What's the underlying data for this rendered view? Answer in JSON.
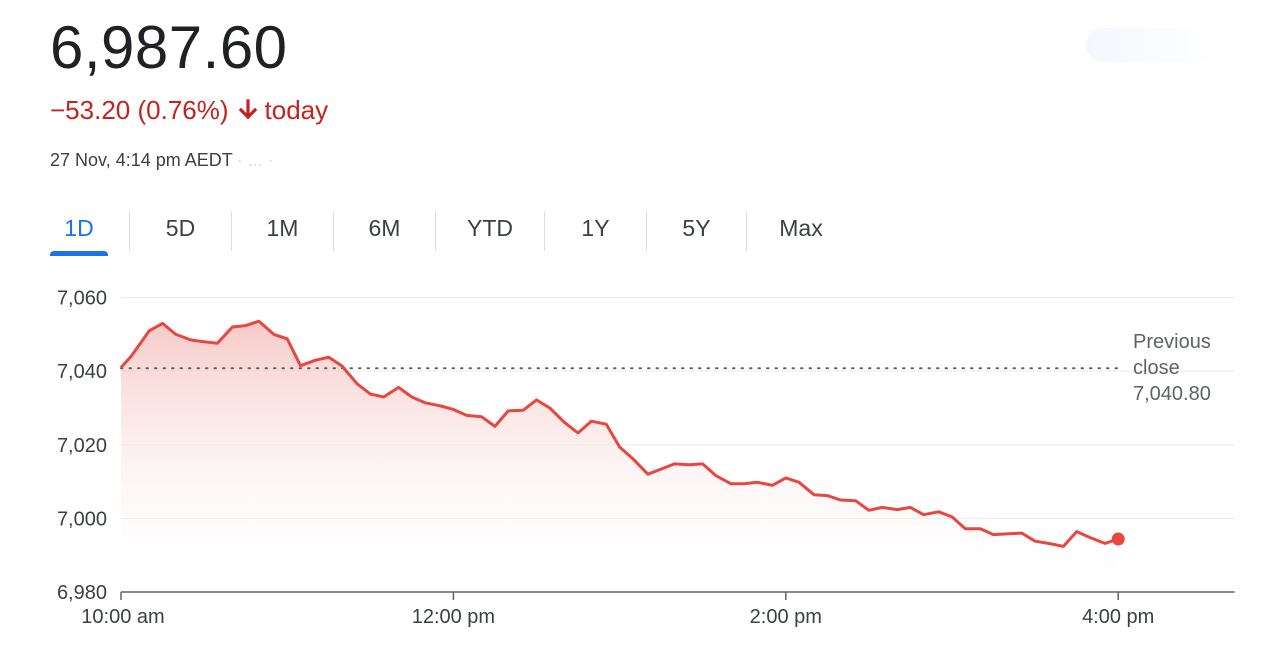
{
  "quote": {
    "price": "6,987.60",
    "change": "−53.20 (0.76%)",
    "change_suffix": "today",
    "timestamp": "27 Nov, 4:14 pm AEDT",
    "timestamp_faded": "· ... ·",
    "direction_icon": "arrow-down-icon",
    "change_color": "#c5221f"
  },
  "range_tabs": [
    {
      "label": "1D",
      "active": true
    },
    {
      "label": "5D",
      "active": false
    },
    {
      "label": "1M",
      "active": false
    },
    {
      "label": "6M",
      "active": false
    },
    {
      "label": "YTD",
      "active": false
    },
    {
      "label": "1Y",
      "active": false
    },
    {
      "label": "5Y",
      "active": false
    },
    {
      "label": "Max",
      "active": false
    }
  ],
  "colors": {
    "line": "#e8473f",
    "fill_top": "#f6c7c4",
    "active_tab": "#1a73e8",
    "grid": "#eeeeee"
  },
  "chart_data": {
    "type": "area",
    "title": "",
    "xlabel": "",
    "ylabel": "",
    "x_unit": "hours after 10:00 am",
    "ylim": [
      6980,
      7060
    ],
    "xlim": [
      0,
      6.7
    ],
    "yticks": [
      7060,
      7040,
      7020,
      7000,
      6980
    ],
    "ytick_labels": [
      "7,060",
      "7,040",
      "7,020",
      "7,000",
      "6,980"
    ],
    "xticks": [
      0,
      2,
      4,
      6
    ],
    "xtick_labels": [
      "10:00 am",
      "12:00 pm",
      "2:00 pm",
      "4:00 pm"
    ],
    "grid": true,
    "reference_line": {
      "label_lines": [
        "Previous",
        "close",
        "7,040.80"
      ],
      "value": 7040.8
    },
    "series": [
      {
        "x": [
          0,
          0.06,
          0.17,
          0.25,
          0.33,
          0.42,
          0.5,
          0.58,
          0.67,
          0.75,
          0.83,
          0.92,
          1.0,
          1.08,
          1.17,
          1.25,
          1.33,
          1.42,
          1.5,
          1.58,
          1.67,
          1.75,
          1.83,
          1.92,
          2.0,
          2.08,
          2.17,
          2.25,
          2.33,
          2.42,
          2.5,
          2.58,
          2.67,
          2.75,
          2.83,
          2.92,
          3.0,
          3.08,
          3.17,
          3.25,
          3.33,
          3.42,
          3.5,
          3.58,
          3.67,
          3.75,
          3.83,
          3.92,
          4.0,
          4.08,
          4.17,
          4.25,
          4.33,
          4.42,
          4.5,
          4.58,
          4.67,
          4.75,
          4.83,
          4.92,
          5.0,
          5.08,
          5.17,
          5.25,
          5.33,
          5.42,
          5.5,
          5.58,
          5.67,
          5.75,
          5.83,
          5.92,
          6.0
        ],
        "y": [
          7041,
          7044,
          7051,
          7053,
          7050,
          7048.5,
          7048,
          7047.6,
          7052,
          7052.4,
          7053.6,
          7050,
          7048.8,
          7041.5,
          7043,
          7043.8,
          7041.4,
          7036.6,
          7033.8,
          7033,
          7035.6,
          7033,
          7031.4,
          7030.6,
          7029.6,
          7028,
          7027.6,
          7025,
          7029.2,
          7029.4,
          7032.2,
          7030,
          7026,
          7023.2,
          7026.4,
          7025.6,
          7019.4,
          7016.2,
          7012,
          7013.4,
          7014.8,
          7014.6,
          7014.8,
          7011.6,
          7009.4,
          7009.4,
          7009.8,
          7009,
          7011,
          7009.8,
          7006.4,
          7006.2,
          7005,
          7004.8,
          7002.2,
          7003,
          7002.4,
          7003,
          7001,
          7001.8,
          7000.4,
          6997.2,
          6997.2,
          6995.6,
          6995.8,
          6996,
          6993.8,
          6993.2,
          6992.4,
          6996.4,
          6994.8,
          6993.2,
          6994.4
        ]
      }
    ]
  }
}
